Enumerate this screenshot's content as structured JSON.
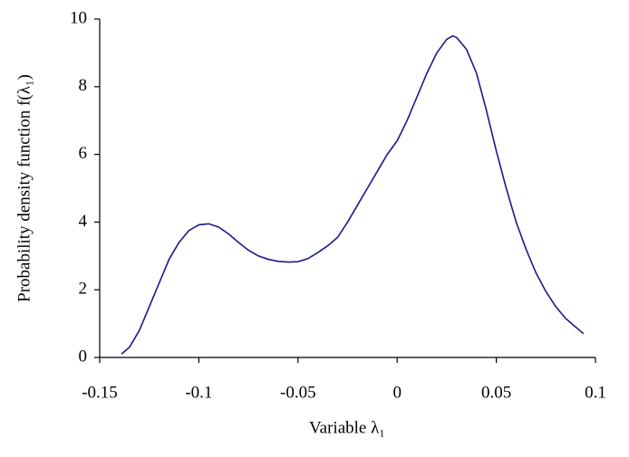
{
  "chart_data": {
    "type": "line",
    "x_label": "Variable λ₁",
    "y_label": "Probability density function  f(λ₁)",
    "xlim": [
      -0.15,
      0.1
    ],
    "xticks": [
      -0.15,
      -0.1,
      -0.05,
      0,
      0.05,
      0.1
    ],
    "ylim": [
      0,
      10
    ],
    "yticks": [
      0,
      2,
      4,
      6,
      8,
      10
    ],
    "grid": false,
    "series": [
      {
        "color": "#1a1a8c",
        "x": [
          -0.139,
          -0.135,
          -0.13,
          -0.125,
          -0.12,
          -0.115,
          -0.11,
          -0.105,
          -0.1,
          -0.095,
          -0.09,
          -0.085,
          -0.08,
          -0.075,
          -0.07,
          -0.065,
          -0.06,
          -0.055,
          -0.05,
          -0.045,
          -0.04,
          -0.035,
          -0.03,
          -0.025,
          -0.02,
          -0.015,
          -0.01,
          -0.005,
          0,
          0.005,
          0.01,
          0.015,
          0.02,
          0.025,
          0.028,
          0.03,
          0.035,
          0.04,
          0.045,
          0.05,
          0.055,
          0.06,
          0.065,
          0.07,
          0.075,
          0.08,
          0.085,
          0.09,
          0.094
        ],
        "values": [
          0.1,
          0.3,
          0.8,
          1.5,
          2.2,
          2.9,
          3.4,
          3.75,
          3.92,
          3.95,
          3.85,
          3.65,
          3.4,
          3.17,
          3.0,
          2.9,
          2.84,
          2.82,
          2.83,
          2.92,
          3.1,
          3.3,
          3.55,
          4.0,
          4.5,
          5.0,
          5.5,
          6.0,
          6.4,
          7.0,
          7.7,
          8.4,
          9.0,
          9.4,
          9.5,
          9.45,
          9.1,
          8.4,
          7.3,
          6.1,
          5.0,
          4.0,
          3.2,
          2.5,
          1.95,
          1.5,
          1.15,
          0.9,
          0.7
        ]
      }
    ]
  }
}
